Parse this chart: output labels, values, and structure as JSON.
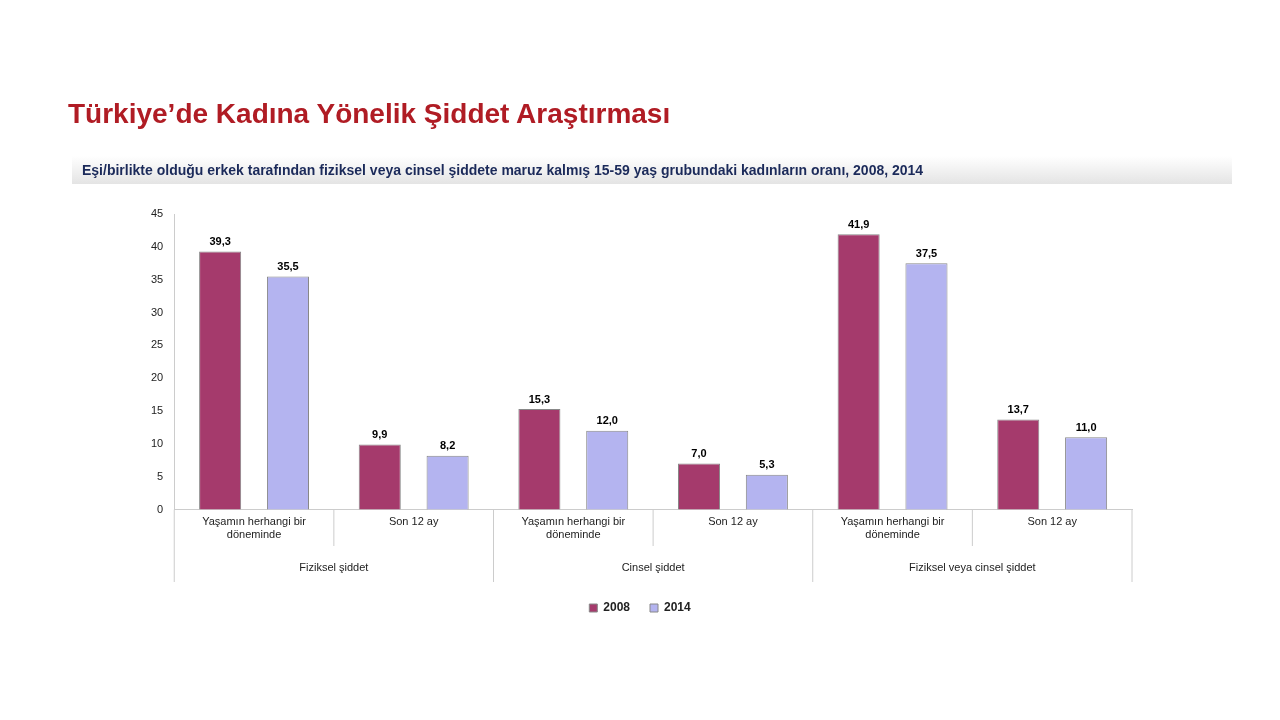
{
  "chart_data": {
    "type": "bar",
    "title": "Türkiye’de Kadına Yönelik Şiddet Araştırması",
    "subtitle": "Eşi/birlikte olduğu erkek tarafından fiziksel veya cinsel şiddete maruz kalmış 15-59 yaş grubundaki kadınların oranı, 2008, 2014",
    "categories": [
      "Yaşamın herhangi bir döneminde",
      "Son 12 ay",
      "Yaşamın herhangi bir döneminde",
      "Son 12 ay",
      "Yaşamın herhangi bir döneminde",
      "Son 12 ay"
    ],
    "series": [
      {
        "name": "2008",
        "color": "#a53a6c",
        "values": [
          39.3,
          9.9,
          15.3,
          7.0,
          41.9,
          13.7
        ],
        "value_labels": [
          "39,3",
          "9,9",
          "15,3",
          "7,0",
          "41,9",
          "13,7"
        ]
      },
      {
        "name": "2014",
        "color": "#b4b4f0",
        "values": [
          35.5,
          8.2,
          12.0,
          5.3,
          37.5,
          11.0
        ],
        "value_labels": [
          "35,5",
          "8,2",
          "12,0",
          "5,3",
          "37,5",
          "11,0"
        ]
      }
    ],
    "annotations": [
      "Fiziksel şiddet",
      "Cinsel şiddet",
      "Fiziksel veya cinsel şiddet"
    ],
    "ylim": [
      0,
      45
    ],
    "yticks": [
      0,
      5,
      10,
      15,
      20,
      25,
      30,
      35,
      40,
      45
    ],
    "grid": false,
    "legend": "bottom"
  }
}
